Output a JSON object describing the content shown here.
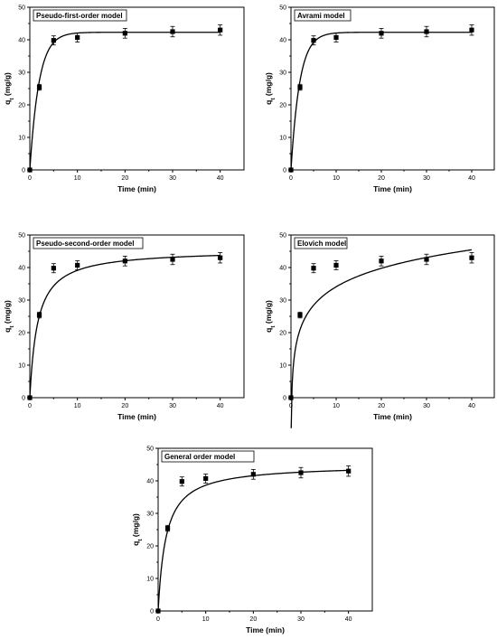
{
  "chart_data": [
    {
      "type": "scatter",
      "title": "Pseudo-first-order model",
      "xlabel": "Time (min)",
      "ylabel": "q",
      "ylabel_sub": "t",
      "ylabel_unit": " (mg/g)",
      "xlim": [
        0,
        45
      ],
      "ylim": [
        0,
        50
      ],
      "xticks": [
        0,
        10,
        20,
        30,
        40
      ],
      "yticks": [
        0,
        10,
        20,
        30,
        40,
        50
      ],
      "points": [
        {
          "x": 0,
          "y": 0,
          "err": 0
        },
        {
          "x": 2,
          "y": 25.4,
          "err": 0.9
        },
        {
          "x": 5,
          "y": 39.8,
          "err": 1.4
        },
        {
          "x": 10,
          "y": 40.7,
          "err": 1.4
        },
        {
          "x": 20,
          "y": 42.0,
          "err": 1.5
        },
        {
          "x": 30,
          "y": 42.5,
          "err": 1.6
        },
        {
          "x": 40,
          "y": 43.0,
          "err": 1.6
        }
      ],
      "fit": {
        "model": "pfo",
        "qe": 42.3,
        "k": 0.52
      }
    },
    {
      "type": "scatter",
      "title": "Avrami model",
      "xlabel": "Time (min)",
      "ylabel": "q",
      "ylabel_sub": "t",
      "ylabel_unit": " (mg/g)",
      "xlim": [
        0,
        45
      ],
      "ylim": [
        0,
        50
      ],
      "xticks": [
        0,
        10,
        20,
        30,
        40
      ],
      "yticks": [
        0,
        10,
        20,
        30,
        40,
        50
      ],
      "points": [
        {
          "x": 0,
          "y": 0,
          "err": 0
        },
        {
          "x": 2,
          "y": 25.4,
          "err": 0.9
        },
        {
          "x": 5,
          "y": 39.8,
          "err": 1.4
        },
        {
          "x": 10,
          "y": 40.7,
          "err": 1.4
        },
        {
          "x": 20,
          "y": 42.0,
          "err": 1.5
        },
        {
          "x": 30,
          "y": 42.5,
          "err": 1.6
        },
        {
          "x": 40,
          "y": 43.0,
          "err": 1.6
        }
      ],
      "fit": {
        "model": "pfo",
        "qe": 42.3,
        "k": 0.52
      }
    },
    {
      "type": "scatter",
      "title": "Pseudo-second-order model",
      "xlabel": "Time (min)",
      "ylabel": "q",
      "ylabel_sub": "t",
      "ylabel_unit": " (mg/g)",
      "xlim": [
        0,
        45
      ],
      "ylim": [
        0,
        50
      ],
      "xticks": [
        0,
        10,
        20,
        30,
        40
      ],
      "yticks": [
        0,
        10,
        20,
        30,
        40,
        50
      ],
      "points": [
        {
          "x": 0,
          "y": 0,
          "err": 0
        },
        {
          "x": 2,
          "y": 25.4,
          "err": 0.9
        },
        {
          "x": 5,
          "y": 39.8,
          "err": 1.4
        },
        {
          "x": 10,
          "y": 40.7,
          "err": 1.4
        },
        {
          "x": 20,
          "y": 42.0,
          "err": 1.5
        },
        {
          "x": 30,
          "y": 42.5,
          "err": 1.6
        },
        {
          "x": 40,
          "y": 43.0,
          "err": 1.6
        }
      ],
      "fit": {
        "model": "pso",
        "qe": 45.5,
        "k": 0.0135
      }
    },
    {
      "type": "scatter",
      "title": "Elovich model",
      "xlabel": "Time (min)",
      "ylabel": "q",
      "ylabel_sub": "t",
      "ylabel_unit": " (mg/g)",
      "xlim": [
        0,
        45
      ],
      "ylim": [
        0,
        50
      ],
      "xticks": [
        0,
        10,
        20,
        30,
        40
      ],
      "yticks": [
        0,
        10,
        20,
        30,
        40,
        50
      ],
      "points": [
        {
          "x": 0,
          "y": 0,
          "err": 0
        },
        {
          "x": 2,
          "y": 25.4,
          "err": 0.9
        },
        {
          "x": 5,
          "y": 39.8,
          "err": 1.4
        },
        {
          "x": 10,
          "y": 40.7,
          "err": 1.4
        },
        {
          "x": 20,
          "y": 42.0,
          "err": 1.5
        },
        {
          "x": 30,
          "y": 42.5,
          "err": 1.6
        },
        {
          "x": 40,
          "y": 43.0,
          "err": 1.6
        }
      ],
      "fit": {
        "model": "elovich",
        "a": 15.2,
        "b": 8.2
      }
    },
    {
      "type": "scatter",
      "title": "General order model",
      "xlabel": "Time (min)",
      "ylabel": "q",
      "ylabel_sub": "t",
      "ylabel_unit": " (mg/g)",
      "xlim": [
        0,
        45
      ],
      "ylim": [
        0,
        50
      ],
      "xticks": [
        0,
        10,
        20,
        30,
        40
      ],
      "yticks": [
        0,
        10,
        20,
        30,
        40,
        50
      ],
      "points": [
        {
          "x": 0,
          "y": 0,
          "err": 0
        },
        {
          "x": 2,
          "y": 25.4,
          "err": 0.9
        },
        {
          "x": 5,
          "y": 39.8,
          "err": 1.4
        },
        {
          "x": 10,
          "y": 40.7,
          "err": 1.4
        },
        {
          "x": 20,
          "y": 42.0,
          "err": 1.5
        },
        {
          "x": 30,
          "y": 42.5,
          "err": 1.6
        },
        {
          "x": 40,
          "y": 43.0,
          "err": 1.6
        }
      ],
      "fit": {
        "model": "pso",
        "qe": 45.0,
        "k": 0.0135
      }
    }
  ]
}
